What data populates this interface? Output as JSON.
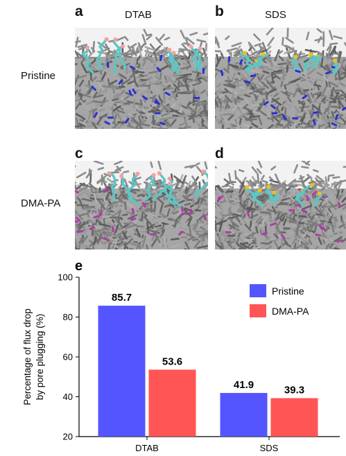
{
  "panels": [
    {
      "letter": "a",
      "column": "DTAB",
      "row": "Pristine",
      "chains": "#5cc7c4",
      "accent": "#2b2fd6",
      "accent2": "#f4a0a0"
    },
    {
      "letter": "b",
      "column": "SDS",
      "row": "Pristine",
      "chains": "#5cc7c4",
      "accent": "#2b2fd6",
      "accent2": "#e8c020"
    },
    {
      "letter": "c",
      "column": "DTAB",
      "row": "DMA-PA",
      "chains": "#5cc7c4",
      "accent": "#b23aa6",
      "accent2": "#f4a0a0"
    },
    {
      "letter": "d",
      "column": "SDS",
      "row": "DMA-PA",
      "chains": "#5cc7c4",
      "accent": "#b23aa6",
      "accent2": "#e8c020"
    }
  ],
  "columns": {
    "left": "DTAB",
    "right": "SDS"
  },
  "rows": {
    "top": "Pristine",
    "bottom": "DMA-PA"
  },
  "membrane_color": "#8c8c8c",
  "chart_data": {
    "letter": "e",
    "type": "bar",
    "categories": [
      "DTAB",
      "SDS"
    ],
    "series": [
      {
        "name": "Pristine",
        "color": "#5555ff",
        "values": [
          85.7,
          41.9
        ]
      },
      {
        "name": "DMA-PA",
        "color": "#ff5555",
        "values": [
          53.6,
          39.3
        ]
      }
    ],
    "value_labels": [
      [
        "85.7",
        "41.9"
      ],
      [
        "53.6",
        "39.3"
      ]
    ],
    "ylabel_line1": "Percentage of flux drop",
    "ylabel_line2": "by pore plugging (%)",
    "ylim": [
      20,
      100
    ],
    "yticks": [
      20,
      40,
      60,
      80,
      100
    ],
    "legend_position": "top-right",
    "grid": false
  }
}
